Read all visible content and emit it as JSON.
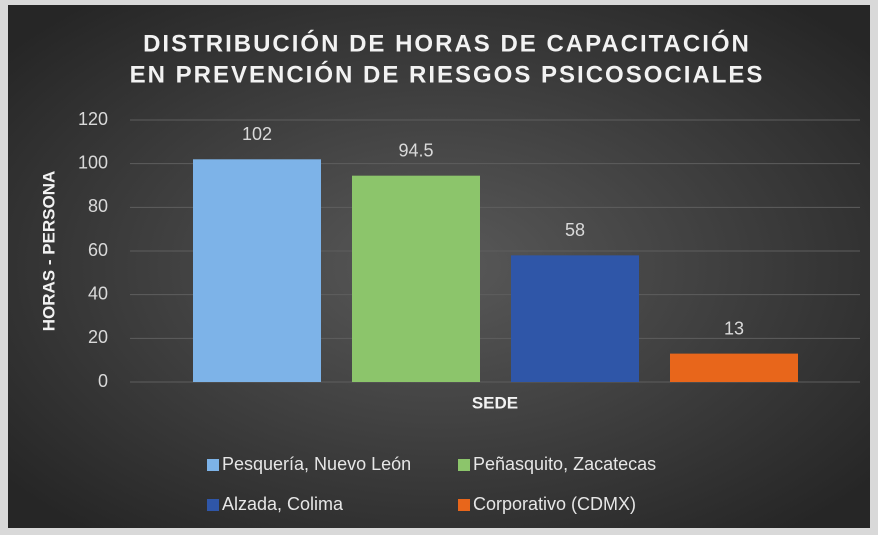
{
  "chart_data": {
    "type": "bar",
    "title": [
      "DISTRIBUCIÓN DE HORAS DE CAPACITACIÓN",
      "EN PREVENCIÓN DE RIESGOS PSICOSOCIALES"
    ],
    "x_label": "SEDE",
    "y_label": "HORAS - PERSONA",
    "categories": [
      null
    ],
    "series": [
      {
        "name": "Pesquería, Nuevo León",
        "color": "#7db3e8",
        "values": [
          102
        ]
      },
      {
        "name": "Peñasquito, Zacatecas",
        "color": "#8cc56b",
        "values": [
          94.5
        ]
      },
      {
        "name": "Alzada, Colima",
        "color": "#2f56a8",
        "values": [
          58
        ]
      },
      {
        "name": "Corporativo (CDMX)",
        "color": "#e8661b",
        "values": [
          13
        ]
      }
    ],
    "ylim": [
      0,
      120
    ],
    "yticks": [
      0,
      20,
      40,
      60,
      80,
      100,
      120
    ],
    "grid": true,
    "legend": "bottom"
  }
}
